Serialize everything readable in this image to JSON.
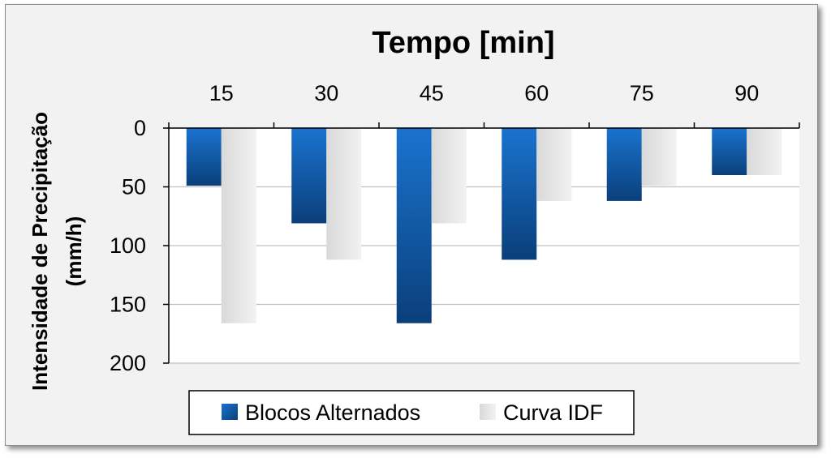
{
  "chart_data": {
    "type": "bar",
    "orientation": "vertical-inverted",
    "title": "",
    "xlabel": "Tempo [min]",
    "xaxis_position": "top",
    "ylabel_line1": "Intensidade de Precipitação",
    "ylabel_line2": "(mm/h)",
    "ylim": [
      0,
      200
    ],
    "y_inverted": true,
    "yticks": [
      0,
      50,
      100,
      150,
      200
    ],
    "categories": [
      "15",
      "30",
      "45",
      "60",
      "75",
      "90"
    ],
    "grid": true,
    "legend_position": "bottom",
    "series": [
      {
        "name": "Blocos Alternados",
        "color": "#1f6fc5",
        "values": [
          49,
          81,
          166,
          112,
          62,
          40
        ]
      },
      {
        "name": "Curva IDF",
        "color": "#e4e4e4",
        "values": [
          166,
          112,
          81,
          62,
          49,
          40
        ]
      }
    ]
  }
}
